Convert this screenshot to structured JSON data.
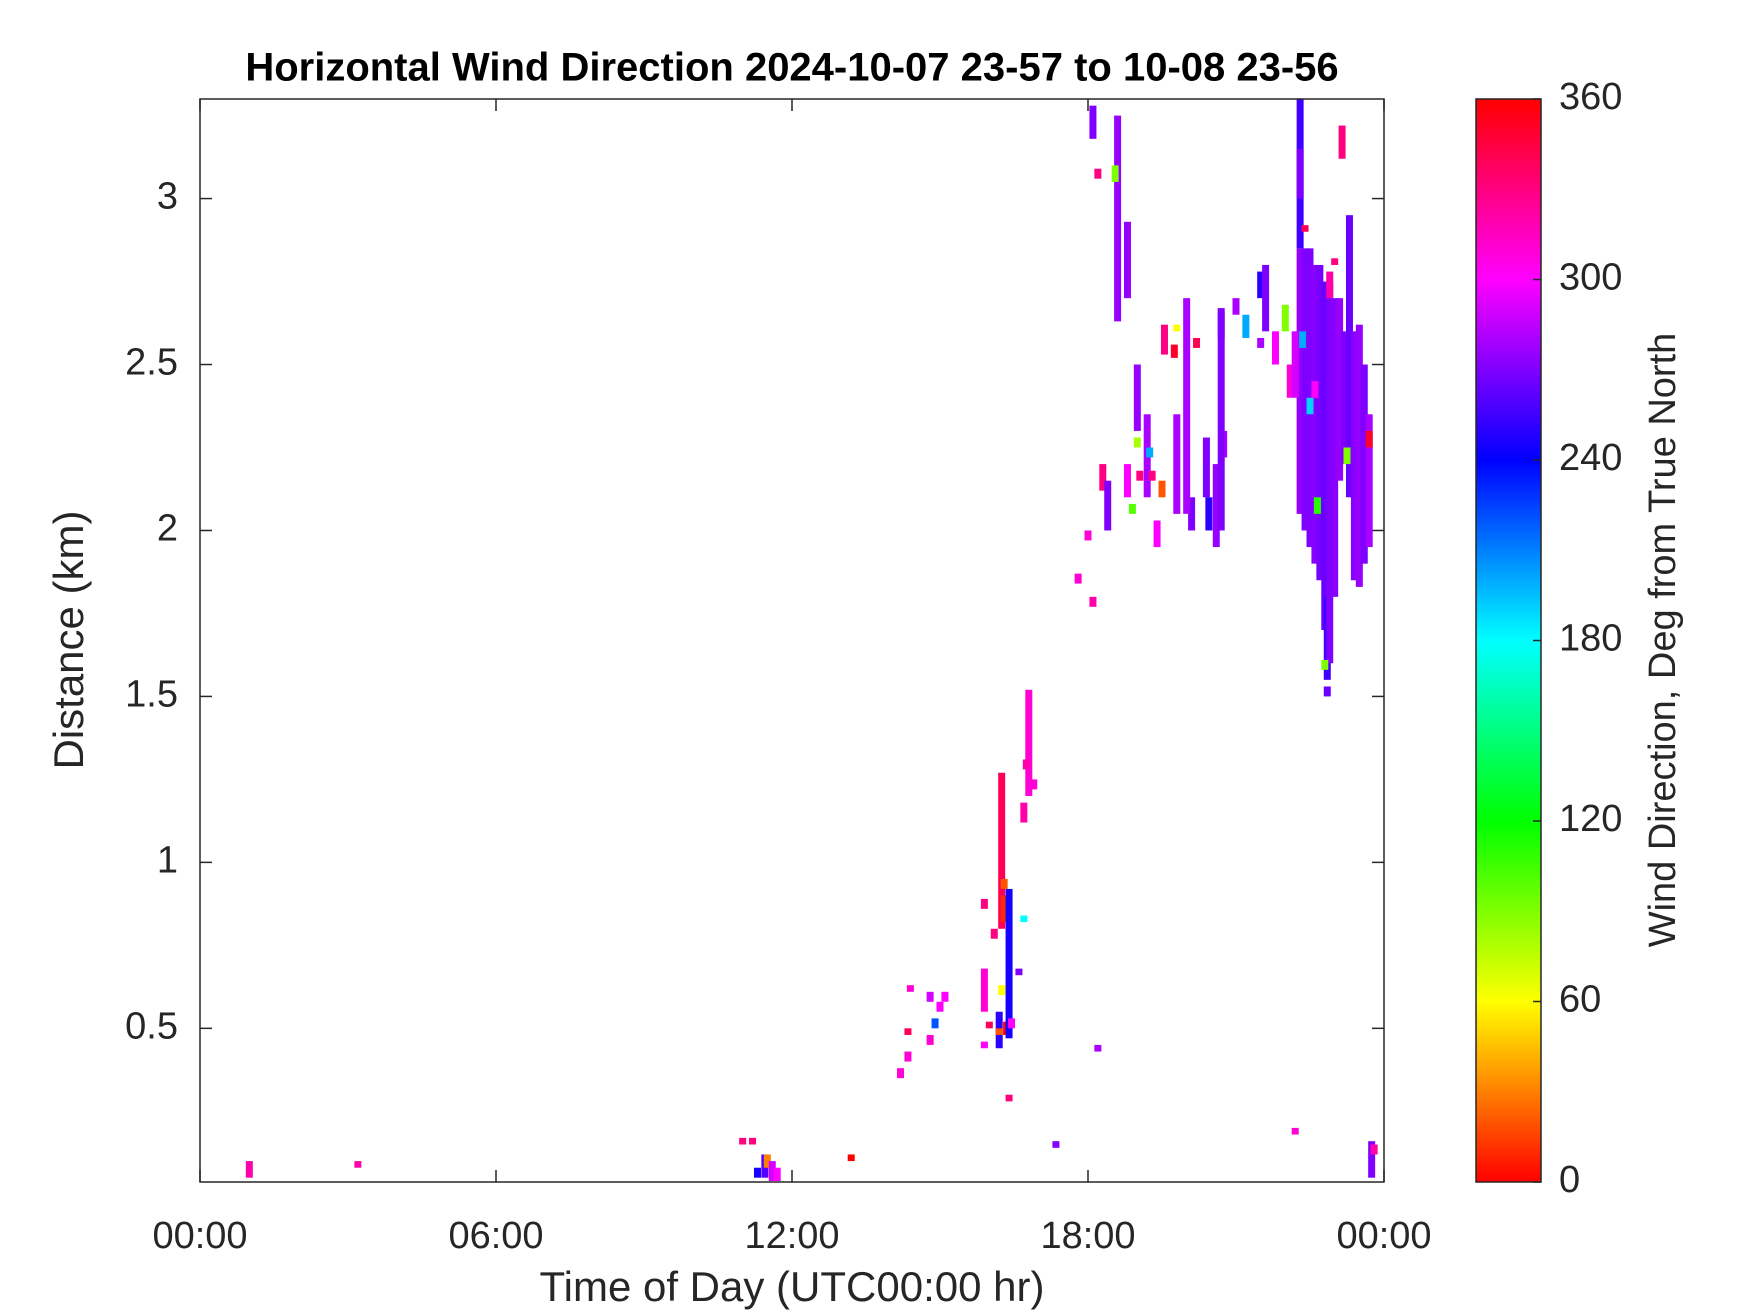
{
  "chart_data": {
    "type": "heatmap",
    "title": "Horizontal Wind Direction 2024-10-07 23-57 to 10-08 23-56",
    "xlabel": "Time of Day (UTC00:00 hr)",
    "ylabel": "Distance (km)",
    "colorbar_label": "Wind Direction, Deg from True North",
    "colormap": "hsv",
    "xlim": [
      0,
      24
    ],
    "xticks": [
      {
        "value": 0,
        "label": "00:00"
      },
      {
        "value": 6,
        "label": "06:00"
      },
      {
        "value": 12,
        "label": "12:00"
      },
      {
        "value": 18,
        "label": "18:00"
      },
      {
        "value": 24,
        "label": "00:00"
      }
    ],
    "ylim": [
      0.037,
      3.3
    ],
    "yticks": [
      0.5,
      1,
      1.5,
      2,
      2.5,
      3
    ],
    "clim": [
      0,
      360
    ],
    "cticks": [
      0,
      60,
      120,
      180,
      240,
      300,
      360
    ],
    "x": [
      1.0,
      3.2,
      11.0,
      11.2,
      11.3,
      11.45,
      11.5,
      11.6,
      11.7,
      13.2,
      14.2,
      14.4,
      14.35,
      14.35,
      14.8,
      14.8,
      14.9,
      15.0,
      15.1,
      15.9,
      15.9,
      15.9,
      16.0,
      16.1,
      16.2,
      16.2,
      16.25,
      16.25,
      16.3,
      16.3,
      16.35,
      16.4,
      16.4,
      16.45,
      16.6,
      16.7,
      16.7,
      16.8,
      16.75,
      16.9,
      17.35,
      17.8,
      18.0,
      18.1,
      18.1,
      18.2,
      18.3,
      18.4,
      18.6,
      18.55,
      18.2,
      18.8,
      18.8,
      18.9,
      19.0,
      19.0,
      19.05,
      19.2,
      19.25,
      19.3,
      19.4,
      19.5,
      19.55,
      19.75,
      19.8,
      19.8,
      20.1,
      20.4,
      20.45,
      20.6,
      20.7,
      20.75,
      20.7,
      20.0,
      20.2,
      21.0,
      21.2,
      21.5,
      21.6,
      21.5,
      21.8,
      22.0,
      22.1,
      22.3,
      22.4,
      22.5,
      22.6,
      22.7,
      22.8,
      22.85,
      22.9,
      23.0,
      23.1,
      23.2,
      23.3,
      23.4,
      23.5,
      23.6,
      23.7,
      22.2,
      22.35,
      22.3,
      22.3,
      22.4,
      22.5,
      22.6,
      22.65,
      22.85,
      22.8,
      22.9,
      23.0,
      23.25,
      23.15,
      23.75,
      23.8,
      23.7,
      22.2
    ],
    "y_bottom": [
      0.05,
      0.08,
      0.15,
      0.15,
      0.05,
      0.05,
      0.08,
      0.04,
      0.04,
      0.1,
      0.35,
      0.61,
      0.48,
      0.4,
      0.58,
      0.45,
      0.5,
      0.55,
      0.58,
      0.44,
      0.55,
      0.86,
      0.5,
      0.77,
      0.44,
      0.48,
      0.6,
      0.8,
      0.82,
      0.92,
      0.48,
      0.47,
      0.28,
      0.5,
      0.66,
      0.82,
      1.12,
      1.2,
      1.28,
      1.22,
      0.14,
      1.84,
      1.97,
      1.77,
      3.18,
      0.43,
      2.12,
      2.0,
      2.63,
      3.05,
      3.06,
      2.7,
      2.1,
      2.05,
      2.3,
      2.25,
      2.15,
      2.1,
      2.22,
      2.15,
      1.95,
      2.1,
      2.53,
      2.52,
      2.05,
      2.6,
      2.0,
      2.1,
      2.0,
      1.95,
      2.58,
      2.22,
      2.0,
      2.05,
      2.55,
      2.65,
      2.58,
      2.7,
      2.6,
      2.55,
      2.5,
      2.6,
      2.4,
      2.05,
      2.0,
      1.95,
      1.9,
      1.85,
      1.7,
      1.55,
      1.6,
      1.8,
      2.15,
      2.2,
      2.1,
      1.85,
      1.83,
      1.9,
      1.95,
      2.4,
      2.55,
      2.85,
      3.0,
      2.9,
      2.35,
      2.4,
      2.05,
      1.5,
      1.58,
      2.7,
      2.8,
      2.2,
      3.12,
      0.05,
      0.12,
      2.25,
      0.18
    ],
    "y_top": [
      0.1,
      0.1,
      0.17,
      0.17,
      0.08,
      0.12,
      0.12,
      0.1,
      0.08,
      0.12,
      0.38,
      0.63,
      0.5,
      0.43,
      0.61,
      0.48,
      0.53,
      0.58,
      0.61,
      0.46,
      0.68,
      0.89,
      0.52,
      0.8,
      0.55,
      0.5,
      0.63,
      1.27,
      0.9,
      0.95,
      0.52,
      0.92,
      0.3,
      0.53,
      0.68,
      0.84,
      1.18,
      1.52,
      1.31,
      1.25,
      0.16,
      1.87,
      2.0,
      1.8,
      3.28,
      0.45,
      2.2,
      2.15,
      3.25,
      3.1,
      3.09,
      2.93,
      2.2,
      2.08,
      2.5,
      2.28,
      2.18,
      2.35,
      2.25,
      2.18,
      2.03,
      2.15,
      2.62,
      2.56,
      2.35,
      2.62,
      2.1,
      2.28,
      2.1,
      2.2,
      2.66,
      2.3,
      2.67,
      2.7,
      2.58,
      2.7,
      2.65,
      2.78,
      2.8,
      2.58,
      2.6,
      2.68,
      2.5,
      2.85,
      2.85,
      2.85,
      2.8,
      2.8,
      2.75,
      1.8,
      2.75,
      2.7,
      2.7,
      2.6,
      2.95,
      2.6,
      2.62,
      2.5,
      2.35,
      2.6,
      2.6,
      3.3,
      3.15,
      2.92,
      2.4,
      2.45,
      2.1,
      1.53,
      1.61,
      2.78,
      2.82,
      2.25,
      3.22,
      0.16,
      0.15,
      2.3,
      0.2
    ],
    "values": [
      320,
      320,
      330,
      330,
      245,
      260,
      30,
      290,
      300,
      0,
      310,
      310,
      340,
      310,
      290,
      310,
      220,
      300,
      300,
      300,
      310,
      330,
      340,
      330,
      250,
      20,
      60,
      340,
      10,
      20,
      0,
      245,
      330,
      300,
      270,
      180,
      320,
      310,
      320,
      310,
      270,
      310,
      310,
      320,
      270,
      280,
      330,
      270,
      275,
      90,
      330,
      275,
      300,
      100,
      275,
      80,
      330,
      280,
      200,
      330,
      300,
      20,
      330,
      350,
      280,
      60,
      270,
      270,
      250,
      275,
      300,
      280,
      270,
      280,
      340,
      280,
      200,
      250,
      270,
      280,
      300,
      90,
      310,
      275,
      270,
      270,
      272,
      268,
      265,
      255,
      270,
      272,
      275,
      270,
      265,
      272,
      275,
      270,
      280,
      290,
      200,
      255,
      270,
      340,
      190,
      300,
      110,
      265,
      90,
      320,
      330,
      90,
      330,
      270,
      320,
      350,
      310
    ]
  }
}
